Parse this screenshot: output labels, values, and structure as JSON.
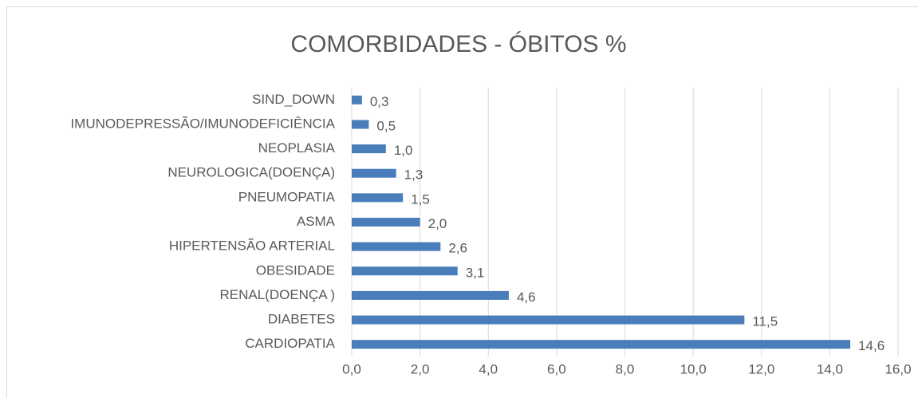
{
  "chart_data": {
    "type": "bar",
    "orientation": "horizontal",
    "title": "COMORBIDADES - ÓBITOS %",
    "categories": [
      "SIND_DOWN",
      "IMUNODEPRESSÃO/IMUNODEFICIÊNCIA",
      "NEOPLASIA",
      "NEUROLOGICA(DOENÇA)",
      "PNEUMOPATIA",
      "ASMA",
      "HIPERTENSÃO ARTERIAL",
      "OBESIDADE",
      "RENAL(DOENÇA )",
      "DIABETES",
      "CARDIOPATIA"
    ],
    "values": [
      0.3,
      0.5,
      1.0,
      1.3,
      1.5,
      2.0,
      2.6,
      3.1,
      4.6,
      11.5,
      14.6
    ],
    "value_labels": [
      "0,3",
      "0,5",
      "1,0",
      "1,3",
      "1,5",
      "2,0",
      "2,6",
      "3,1",
      "4,6",
      "11,5",
      "14,6"
    ],
    "color": "#4a7ebb",
    "xlim": [
      0,
      16
    ],
    "xticks": [
      {
        "value": 0,
        "label": "0,0"
      },
      {
        "value": 2,
        "label": "2,0"
      },
      {
        "value": 4,
        "label": "4,0"
      },
      {
        "value": 6,
        "label": "6,0"
      },
      {
        "value": 8,
        "label": "8,0"
      },
      {
        "value": 10,
        "label": "10,0"
      },
      {
        "value": 12,
        "label": "12,0"
      },
      {
        "value": 14,
        "label": "14,0"
      },
      {
        "value": 16,
        "label": "16,0"
      }
    ],
    "grid": true
  }
}
